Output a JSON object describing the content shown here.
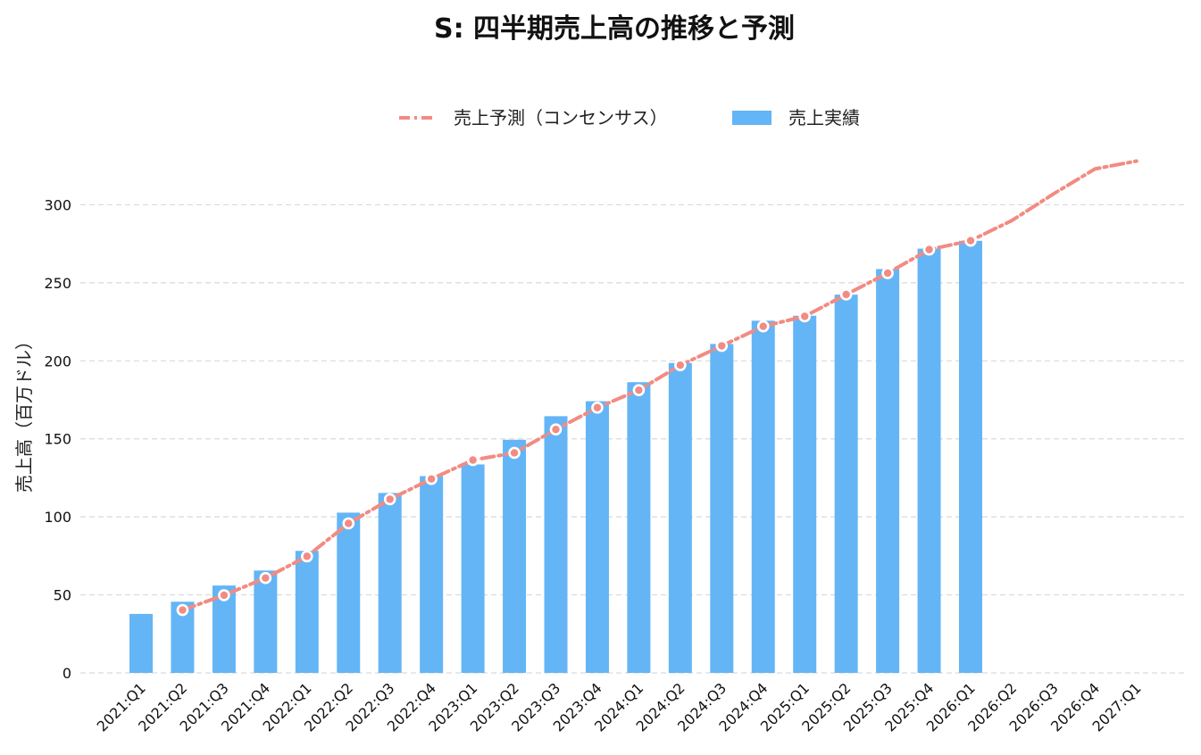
{
  "chart_data": {
    "type": "bar",
    "title": "S: 四半期売上高の推移と予測",
    "xlabel": "",
    "ylabel": "売上高（百万ドル）",
    "ylim": [
      0,
      330
    ],
    "yticks": [
      0,
      50,
      100,
      150,
      200,
      250,
      300
    ],
    "grid": true,
    "legend_position": "top-center",
    "categories": [
      "2021:Q1",
      "2021:Q2",
      "2021:Q3",
      "2021:Q4",
      "2022:Q1",
      "2022:Q2",
      "2022:Q3",
      "2022:Q4",
      "2023:Q1",
      "2023:Q2",
      "2023:Q3",
      "2023:Q4",
      "2024:Q1",
      "2024:Q2",
      "2024:Q3",
      "2024:Q4",
      "2025:Q1",
      "2025:Q2",
      "2025:Q3",
      "2025:Q4",
      "2026:Q1",
      "2026:Q2",
      "2026:Q3",
      "2026:Q4",
      "2027:Q1"
    ],
    "series": [
      {
        "name": "売上予測（コンセンサス）",
        "kind": "line",
        "color": "#F28B82",
        "style": "dash-dot",
        "values": [
          null,
          40.3,
          49.8,
          60.8,
          74.7,
          95.8,
          111.3,
          124.3,
          136.4,
          141.0,
          156.0,
          170.0,
          181.2,
          197.2,
          209.6,
          222.1,
          228.5,
          242.5,
          256.2,
          271.3,
          277.0,
          290.0,
          307.0,
          323.0,
          328.0
        ]
      },
      {
        "name": "売上実績",
        "kind": "bar",
        "color": "#64B5F6",
        "values": [
          37.8,
          45.6,
          56.0,
          65.6,
          78.2,
          102.7,
          115.3,
          126.1,
          133.6,
          149.4,
          164.5,
          174.1,
          186.3,
          198.6,
          210.8,
          225.7,
          228.9,
          242.4,
          258.8,
          271.9,
          276.9,
          null,
          null,
          null,
          null
        ]
      }
    ]
  }
}
